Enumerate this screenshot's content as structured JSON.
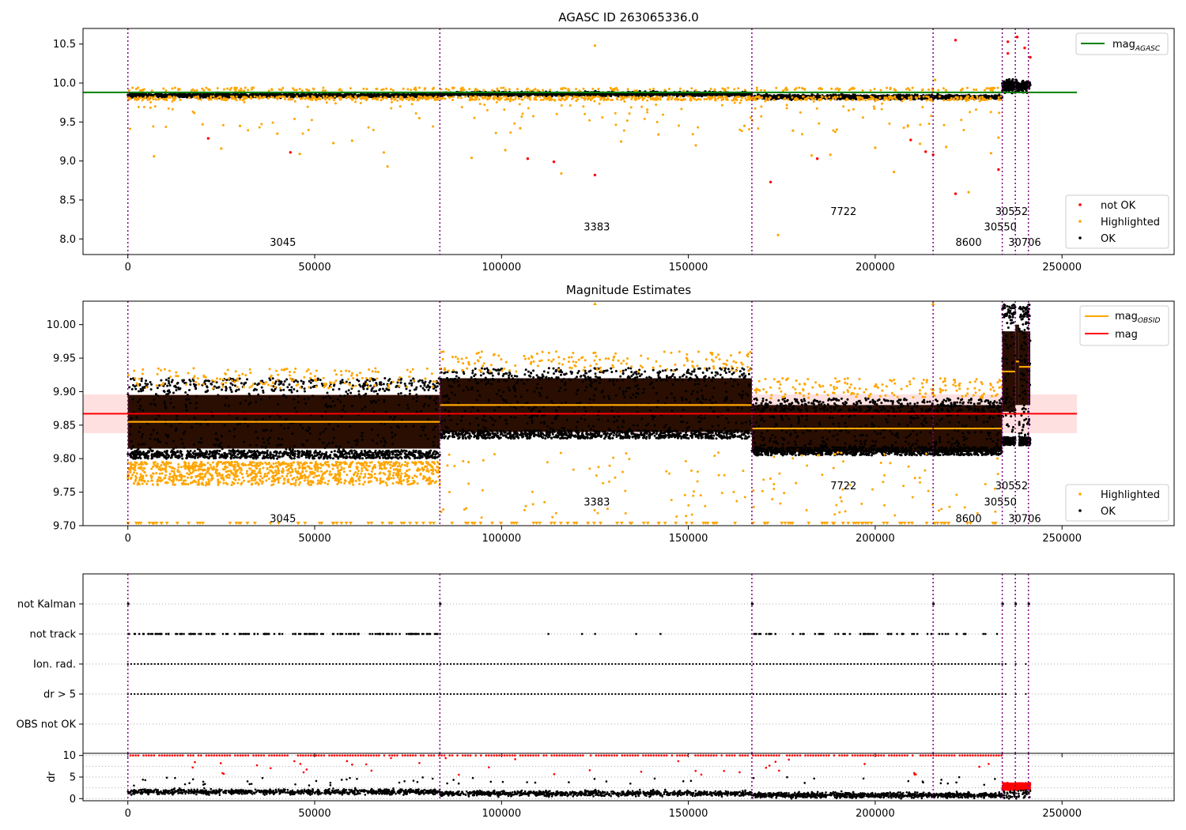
{
  "chart_data": [
    {
      "type": "scatter",
      "title": "AGASC ID 263065336.0",
      "xlabel": "",
      "ylabel": "",
      "xlim": [
        -12000,
        280000
      ],
      "ylim": [
        7.8,
        10.7
      ],
      "xticks": [
        0,
        50000,
        100000,
        150000,
        200000,
        250000
      ],
      "yticks": [
        8.0,
        8.5,
        9.0,
        9.5,
        10.0,
        10.5
      ],
      "grid": false,
      "obsid_boundaries": [
        0,
        83500,
        167000,
        215500,
        234000,
        237500,
        241000
      ],
      "obsid_labels": [
        {
          "text": "3045",
          "x": 41500,
          "y": 7.95
        },
        {
          "text": "3383",
          "x": 125500,
          "y": 8.15
        },
        {
          "text": "7722",
          "x": 191500,
          "y": 8.35
        },
        {
          "text": "8600",
          "x": 225000,
          "y": 7.95
        },
        {
          "text": "30550",
          "x": 233500,
          "y": 8.15
        },
        {
          "text": "30552",
          "x": 236500,
          "y": 8.35
        },
        {
          "text": "30706",
          "x": 240000,
          "y": 7.95
        }
      ],
      "lines": [
        {
          "name": "mag_AGASC",
          "name_main": "mag",
          "name_sub": "AGASC",
          "y": 9.88,
          "x": [
            -12000,
            254000
          ],
          "color": "#008000"
        }
      ],
      "series": [
        {
          "name": "not OK",
          "color": "#ff0000",
          "points": [
            [
              21500,
              9.29
            ],
            [
              43500,
              9.11
            ],
            [
              107000,
              9.03
            ],
            [
              114000,
              8.99
            ],
            [
              125000,
              8.82
            ],
            [
              172000,
              8.73
            ],
            [
              184500,
              9.03
            ],
            [
              209500,
              9.27
            ],
            [
              213500,
              9.12
            ],
            [
              215500,
              9.08
            ],
            [
              221500,
              10.55
            ],
            [
              221500,
              8.58
            ],
            [
              233000,
              8.89
            ],
            [
              235500,
              10.53
            ],
            [
              235500,
              10.38
            ],
            [
              238000,
              10.59
            ],
            [
              240000,
              10.45
            ],
            [
              241500,
              10.33
            ]
          ]
        },
        {
          "name": "Highlighted",
          "color": "#ffa500",
          "points": [
            [
              7000,
              9.06
            ],
            [
              20000,
              9.47
            ],
            [
              25000,
              9.16
            ],
            [
              30000,
              9.45
            ],
            [
              40000,
              9.35
            ],
            [
              46000,
              9.09
            ],
            [
              55000,
              9.23
            ],
            [
              60000,
              9.26
            ],
            [
              68500,
              9.11
            ],
            [
              69500,
              8.93
            ],
            [
              78000,
              9.55
            ],
            [
              92000,
              9.04
            ],
            [
              101000,
              9.14
            ],
            [
              105000,
              9.42
            ],
            [
              116000,
              8.84
            ],
            [
              125000,
              10.48
            ],
            [
              132000,
              9.25
            ],
            [
              142000,
              9.34
            ],
            [
              152000,
              9.2
            ],
            [
              165000,
              9.45
            ],
            [
              174000,
              8.05
            ],
            [
              178000,
              9.39
            ],
            [
              183000,
              9.07
            ],
            [
              188000,
              9.08
            ],
            [
              200000,
              9.17
            ],
            [
              205000,
              8.86
            ],
            [
              212000,
              9.22
            ],
            [
              216000,
              10.04
            ],
            [
              219000,
              9.18
            ],
            [
              225000,
              8.6
            ],
            [
              231000,
              9.1
            ],
            [
              233000,
              9.3
            ]
          ]
        },
        {
          "name": "OK",
          "color": "#000000",
          "points": []
        }
      ],
      "legends": [
        {
          "position": "upper-right",
          "entries": [
            "mag_AGASC"
          ]
        },
        {
          "position": "lower-right",
          "entries": [
            "not OK",
            "Highlighted",
            "OK"
          ]
        }
      ]
    },
    {
      "type": "scatter",
      "title": "Magnitude Estimates",
      "xlabel": "",
      "ylabel": "",
      "xlim": [
        -12000,
        280000
      ],
      "ylim": [
        9.7,
        10.035
      ],
      "xticks": [
        0,
        50000,
        100000,
        150000,
        200000,
        250000
      ],
      "yticks": [
        9.7,
        9.75,
        9.8,
        9.85,
        9.9,
        9.95,
        10.0
      ],
      "grid": false,
      "obsid_boundaries": [
        0,
        83500,
        167000,
        215500,
        234000,
        237500,
        241000
      ],
      "obsid_labels": [
        {
          "text": "3045",
          "x": 41500,
          "y": 9.71
        },
        {
          "text": "3383",
          "x": 125500,
          "y": 9.735
        },
        {
          "text": "7722",
          "x": 191500,
          "y": 9.759
        },
        {
          "text": "8600",
          "x": 225000,
          "y": 9.71
        },
        {
          "text": "30550",
          "x": 233500,
          "y": 9.735
        },
        {
          "text": "30552",
          "x": 236500,
          "y": 9.759
        },
        {
          "text": "30706",
          "x": 240000,
          "y": 9.71
        }
      ],
      "mag_obsid": [
        {
          "x0": 0,
          "x1": 83500,
          "y": 9.855,
          "lo": 9.815,
          "hi": 9.895
        },
        {
          "x0": 83500,
          "x1": 167000,
          "y": 9.88,
          "lo": 9.84,
          "hi": 9.92
        },
        {
          "x0": 167000,
          "x1": 234000,
          "y": 9.845,
          "lo": 9.81,
          "hi": 9.88
        },
        {
          "x0": 234000,
          "x1": 237500,
          "y": 9.93,
          "lo": 9.87,
          "hi": 9.99
        },
        {
          "x0": 237500,
          "x1": 238500,
          "y": 9.945,
          "lo": 9.88,
          "hi": 10.0
        },
        {
          "x0": 238500,
          "x1": 241500,
          "y": 9.937,
          "lo": 9.88,
          "hi": 9.99
        }
      ],
      "mag": {
        "name": "mag",
        "y": 9.867,
        "lo": 9.838,
        "hi": 9.896,
        "x": [
          -12000,
          254000
        ],
        "color": "#ff0000"
      },
      "lines": [
        {
          "name": "mag_OBSID",
          "name_main": "mag",
          "name_sub": "OBSID",
          "color": "#ffa500"
        },
        {
          "name": "mag",
          "name_main": "mag",
          "name_sub": "",
          "color": "#ff0000"
        }
      ],
      "series": [
        {
          "name": "Highlighted",
          "color": "#ffa500",
          "points": []
        },
        {
          "name": "OK",
          "color": "#000000",
          "points": []
        }
      ],
      "legends": [
        {
          "position": "upper-right",
          "entries": [
            "mag_OBSID",
            "mag"
          ]
        },
        {
          "position": "lower-right",
          "entries": [
            "Highlighted",
            "OK"
          ]
        }
      ]
    },
    {
      "type": "scatter",
      "title": "",
      "xlabel": "",
      "ylabel": "",
      "xlim": [
        -12000,
        280000
      ],
      "categories": [
        "not Kalman",
        "not track",
        "Ion. rad.",
        "dr > 5",
        "OBS not OK"
      ],
      "grid": true,
      "obsid_boundaries": [
        0,
        83500,
        167000,
        215500,
        234000,
        237500,
        241000
      ]
    },
    {
      "type": "scatter",
      "title": "",
      "xlabel": "",
      "ylabel": "dr",
      "xlim": [
        -12000,
        280000
      ],
      "ylim": [
        -0.5,
        10.5
      ],
      "xticks": [
        0,
        50000,
        100000,
        150000,
        200000,
        250000
      ],
      "yticks": [
        0,
        5,
        10
      ],
      "grid": true,
      "obsid_boundaries": [
        0,
        83500,
        167000,
        215500,
        234000,
        237500,
        241000
      ]
    }
  ]
}
